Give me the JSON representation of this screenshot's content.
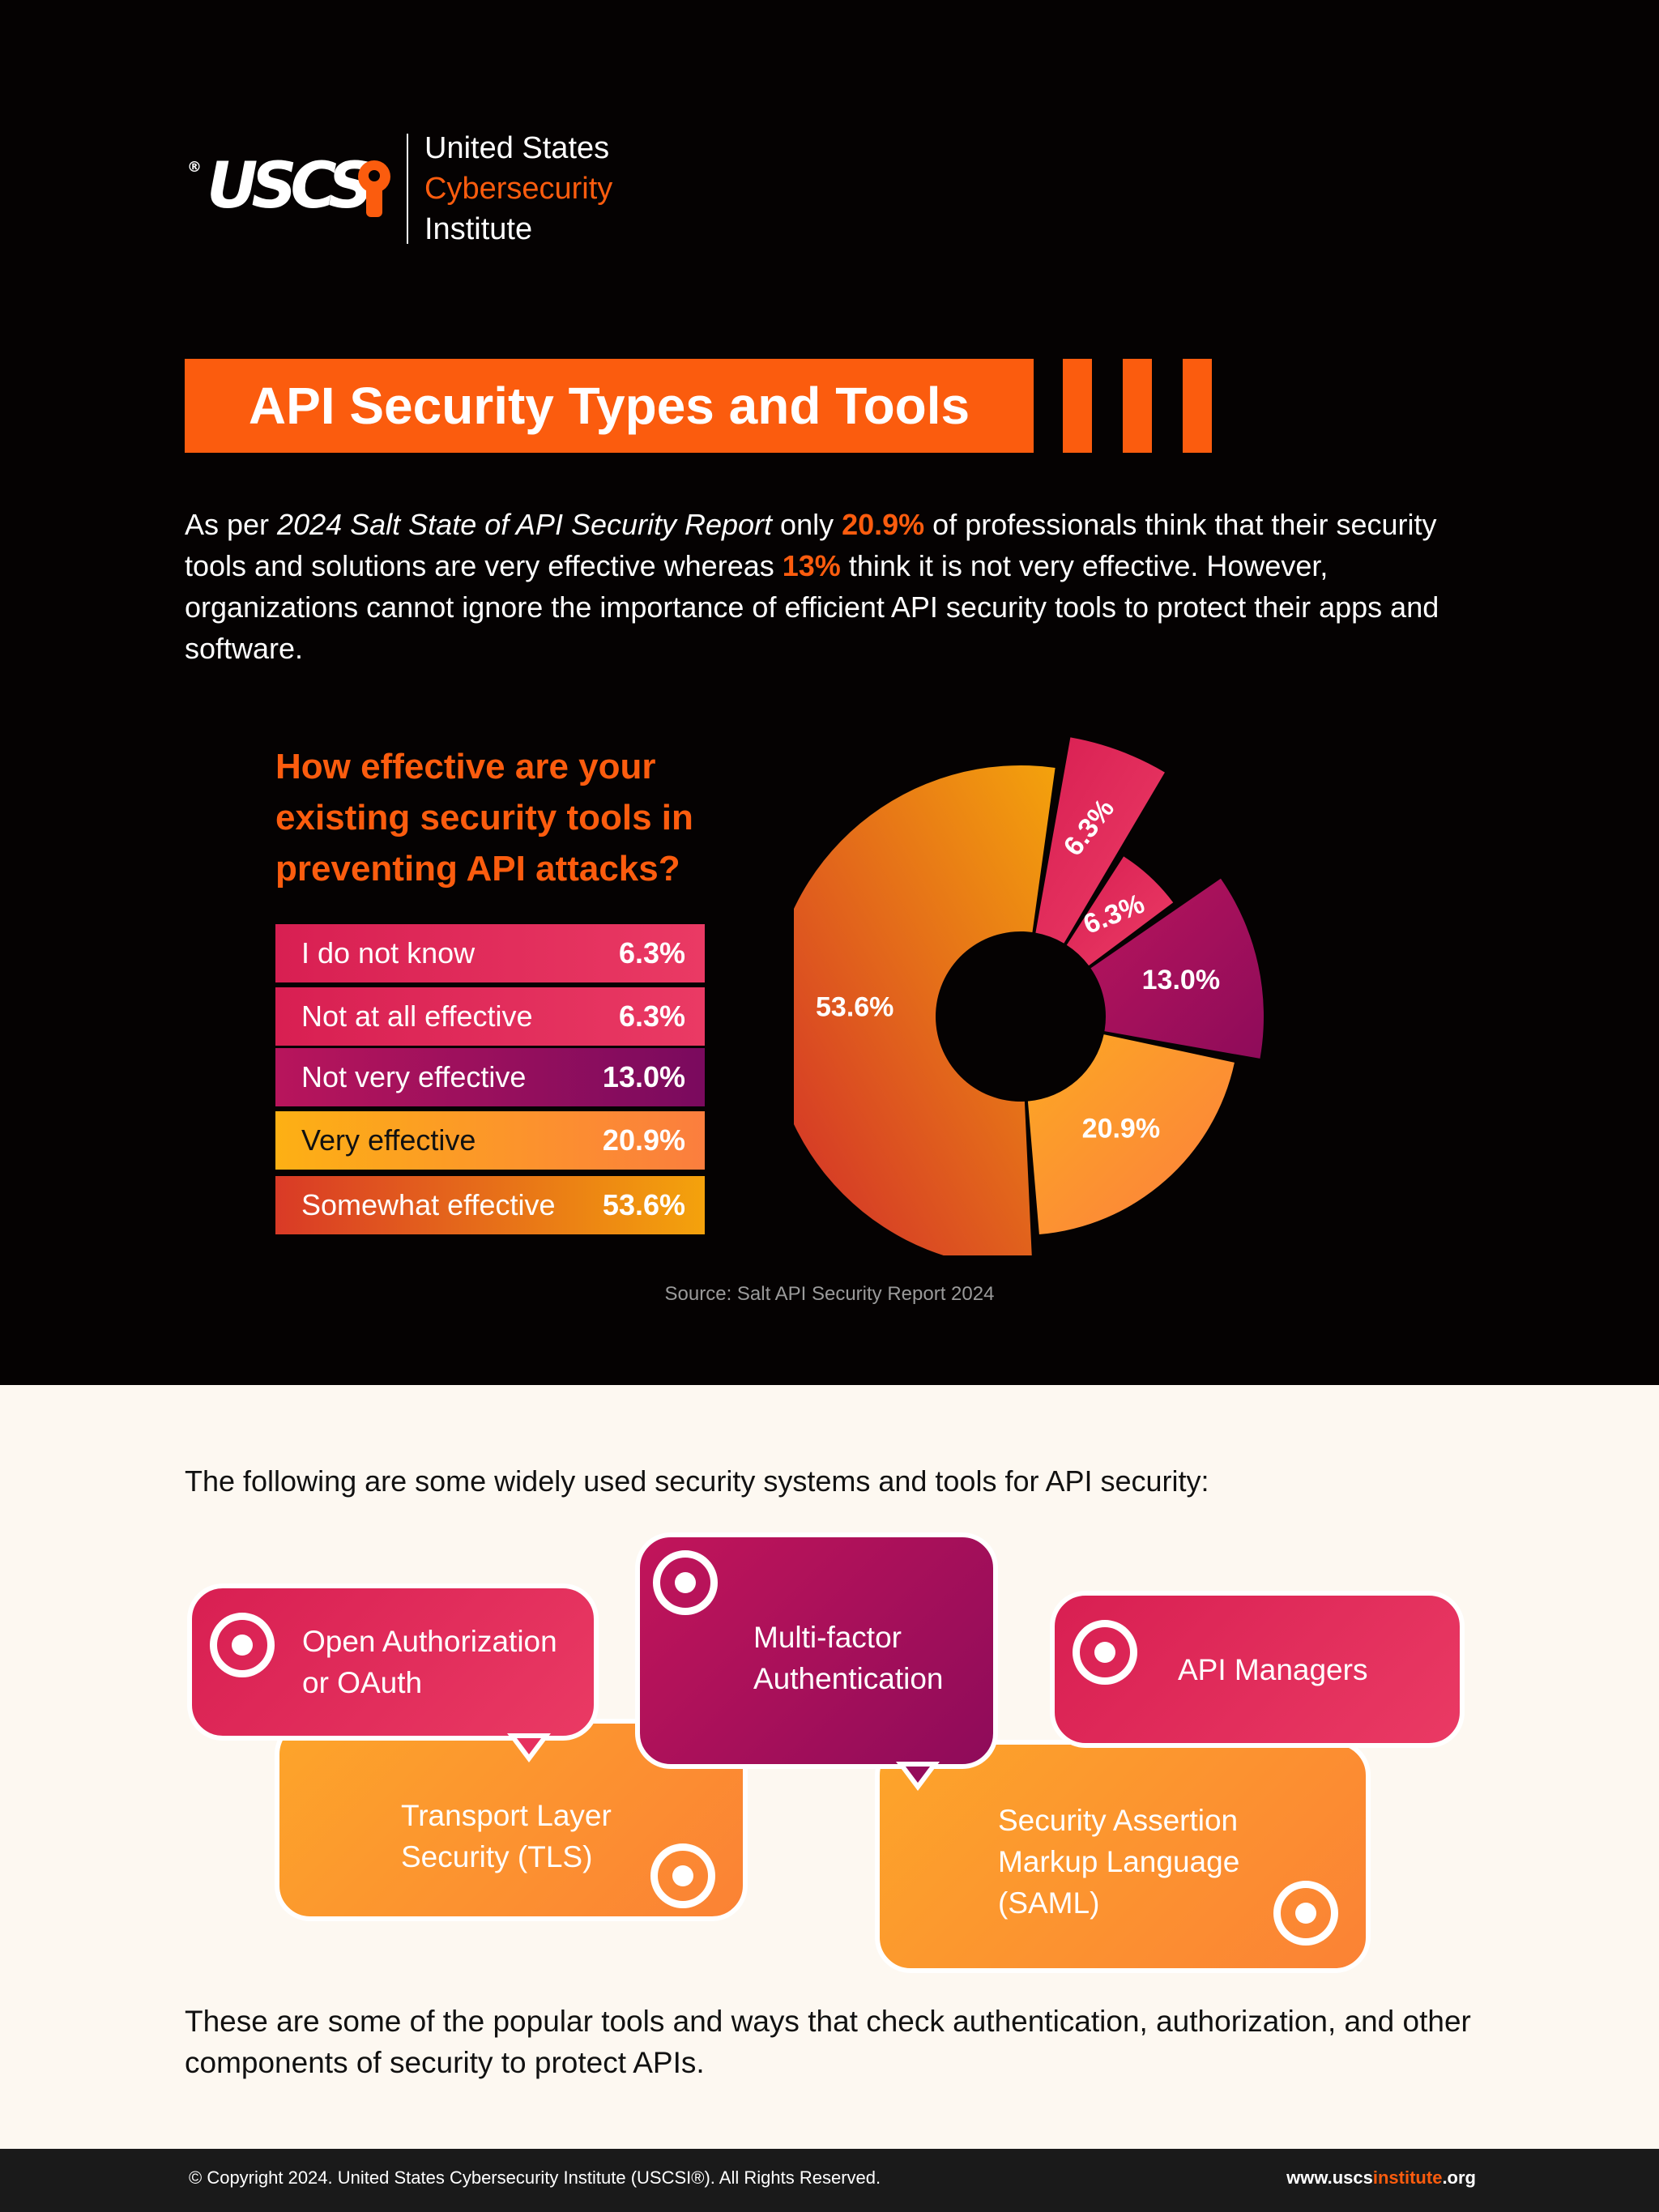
{
  "logo": {
    "registered": "®",
    "mark": "USCS",
    "line1": "United States",
    "line2": "Cybersecurity",
    "line3": "Institute",
    "accent": "#fb5c0e"
  },
  "title": "API Security Types and Tools",
  "intro": {
    "p1": "As per ",
    "report": "2024 Salt State of API Security Report",
    "p2": " only ",
    "hl1": "20.9%",
    "p3": " of professionals think that their security tools and solutions are very effective whereas ",
    "hl2": "13%",
    "p4": " think it is not very effective. However, organizations cannot ignore the importance of efficient API security tools to protect their apps and software."
  },
  "question": "How effective are your existing security tools in preventing API attacks?",
  "chart_data": {
    "type": "pie",
    "title": "How effective are your existing security tools in preventing API attacks?",
    "categories": [
      "I do not know",
      "Not at all effective",
      "Not very effective",
      "Very effective",
      "Somewhat effective"
    ],
    "values": [
      6.3,
      6.3,
      13.0,
      20.9,
      53.6
    ],
    "labels": [
      "6.3%",
      "6.3%",
      "13.0%",
      "20.9%",
      "53.6%"
    ],
    "colors": [
      "#e0285a",
      "#e6305e",
      "#a8125e",
      "#fc9a2c",
      "#e04a26"
    ],
    "legend": "left",
    "style": "donut with variable-radius sectors"
  },
  "source": "Source: Salt API Security Report 2024",
  "lead": "The following are some widely used security systems and tools for API security:",
  "tools": {
    "oauth": "Open Authorization or OAuth",
    "mfa": "Multi-factor Authentication",
    "api_managers": "API Managers",
    "tls": "Transport Layer Security (TLS)",
    "saml": "Security Assertion Markup Language (SAML)"
  },
  "tool_icons": [
    "target-icon"
  ],
  "outro": "These are some of the popular tools and ways that check authentication, authorization, and other components of security to protect APIs.",
  "footer": {
    "copyright": "© Copyright 2024. United States Cybersecurity Institute (USCSI®). All Rights Reserved.",
    "site_pre": "www.uscs",
    "site_accent": "institute",
    "site_post": ".org"
  }
}
